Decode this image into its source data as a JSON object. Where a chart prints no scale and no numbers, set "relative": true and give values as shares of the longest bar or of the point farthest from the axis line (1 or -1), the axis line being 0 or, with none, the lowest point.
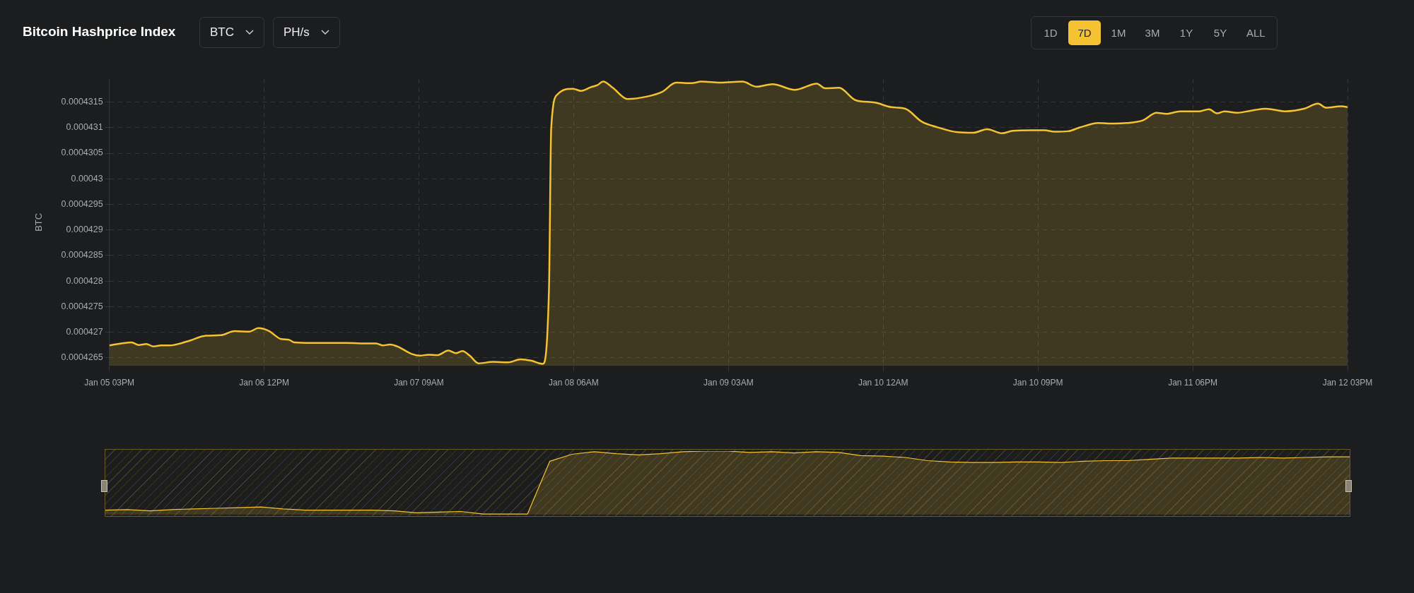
{
  "chart_data": [
    {
      "type": "area",
      "title": "Bitcoin Hashprice Index",
      "ylabel": "BTC",
      "annotations": [
        "BTC",
        "PH/s",
        "1D",
        "7D",
        "1M",
        "3M",
        "1Y",
        "5Y",
        "ALL"
      ],
      "xlim": [
        "--01-05T15:00",
        "--01-12T15:00"
      ],
      "xticks": [
        {
          "value": "--01-05T15:00",
          "label": "Jan 05 03PM"
        },
        {
          "value": "--01-06T12:00",
          "label": "Jan 06 12PM"
        },
        {
          "value": "--01-07T09:00",
          "label": "Jan 07 09AM"
        },
        {
          "value": "--01-08T06:00",
          "label": "Jan 08 06AM"
        },
        {
          "value": "--01-09T03:00",
          "label": "Jan 09 03AM"
        },
        {
          "value": "--01-10T00:00",
          "label": "Jan 10 12AM"
        },
        {
          "value": "--01-10T21:00",
          "label": "Jan 10 09PM"
        },
        {
          "value": "--01-11T18:00",
          "label": "Jan 11 06PM"
        },
        {
          "value": "--01-12T15:00",
          "label": "Jan 12 03PM"
        }
      ],
      "ylim": [
        0.00042635,
        0.00043195
      ],
      "yticks": [
        0.0004265,
        0.000427,
        0.0004275,
        0.000428,
        0.0004285,
        0.000429,
        0.0004295,
        0.00043,
        0.0004305,
        0.000431,
        0.0004315
      ],
      "grid": true,
      "legend": false,
      "marker": "none",
      "line_style": "solid",
      "series": [
        {
          "color": "#f5c232",
          "x": [
            "--01-05T15:00",
            "--01-05T18:00",
            "--01-05T19:00",
            "--01-05T20:00",
            "--01-05T21:00",
            "--01-05T22:00",
            "--01-05T23:12",
            "--01-06T01:36",
            "--01-06T04:06",
            "--01-06T06:06",
            "--01-06T08:00",
            "--01-06T10:00",
            "--01-06T11:12",
            "--01-06T12:42",
            "--01-06T14:12",
            "--01-06T15:24",
            "--01-06T16:06",
            "--01-06T18:18",
            "--01-06T20:18",
            "--01-06T23:12",
            "--01-07T01:12",
            "--01-07T03:12",
            "--01-07T04:06",
            "--01-07T05:06",
            "--01-07T06:06",
            "--01-07T08:06",
            "--01-07T09:06",
            "--01-07T10:18",
            "--01-07T11:30",
            "--01-07T13:00",
            "--01-07T14:00",
            "--01-07T14:54",
            "--01-07T15:54",
            "--01-07T17:06",
            "--01-07T19:06",
            "--01-07T21:06",
            "--01-07T22:48",
            "--01-08T00:18",
            "--01-08T01:48",
            "--01-08T02:39",
            "--01-08T02:57",
            "--01-08T03:48",
            "--01-08T05:54",
            "--01-08T07:00",
            "--01-08T08:18",
            "--01-08T09:12",
            "--01-08T10:00",
            "--01-08T11:18",
            "--01-08T13:18",
            "--01-08T16:00",
            "--01-08T18:00",
            "--01-08T19:54",
            "--01-08T22:00",
            "--01-08T23:18",
            "--01-09T01:54",
            "--01-09T04:54",
            "--01-09T06:48",
            "--01-09T09:00",
            "--01-09T12:00",
            "--01-09T15:00",
            "--01-09T16:06",
            "--01-09T18:00",
            "--01-09T20:12",
            "--01-09T22:54",
            "--01-10T01:06",
            "--01-10T03:00",
            "--01-10T05:12",
            "--01-10T07:18",
            "--01-10T10:06",
            "--01-10T12:12",
            "--01-10T14:06",
            "--01-10T16:06",
            "--01-10T17:36",
            "--01-10T20:12",
            "--01-10T21:54",
            "--01-10T23:12",
            "--01-11T01:06",
            "--01-11T02:36",
            "--01-11T05:12",
            "--01-11T07:18",
            "--01-11T09:00",
            "--01-11T11:12",
            "--01-11T13:06",
            "--01-11T14:24",
            "--01-11T16:18",
            "--01-11T18:54",
            "--01-11T20:12",
            "--01-11T21:18",
            "--01-11T22:18",
            "--01-12T00:00",
            "--01-12T01:48",
            "--01-12T03:54",
            "--01-12T06:30",
            "--01-12T09:06",
            "--01-12T11:00",
            "--01-12T12:06",
            "--01-12T14:12",
            "--01-12T15:00"
          ],
          "values": [
            0.00042674,
            0.0004268,
            0.00042675,
            0.00042677,
            0.00042672,
            0.00042674,
            0.00042674,
            0.00042682,
            0.00042693,
            0.00042694,
            0.00042702,
            0.00042701,
            0.00042708,
            0.00042702,
            0.00042687,
            0.00042685,
            0.0004268,
            0.00042679,
            0.00042679,
            0.00042679,
            0.00042678,
            0.00042678,
            0.00042674,
            0.00042676,
            0.00042672,
            0.00042657,
            0.00042654,
            0.00042656,
            0.00042655,
            0.00042664,
            0.00042659,
            0.00042663,
            0.00042654,
            0.00042639,
            0.00042642,
            0.00042641,
            0.00042647,
            0.00042644,
            0.00042638,
            0.00042785,
            0.00043099,
            0.00043165,
            0.00043176,
            0.00043172,
            0.00043179,
            0.00043183,
            0.0004319,
            0.00043178,
            0.00043156,
            0.00043161,
            0.0004317,
            0.00043188,
            0.00043187,
            0.0004319,
            0.00043188,
            0.0004319,
            0.0004318,
            0.00043185,
            0.00043174,
            0.00043186,
            0.00043177,
            0.00043178,
            0.00043154,
            0.00043149,
            0.0004314,
            0.00043137,
            0.00043112,
            0.00043101,
            0.00043091,
            0.0004309,
            0.00043097,
            0.00043089,
            0.00043094,
            0.00043095,
            0.00043095,
            0.00043092,
            0.00043093,
            0.000431,
            0.00043109,
            0.00043108,
            0.00043109,
            0.00043114,
            0.00043129,
            0.00043127,
            0.00043132,
            0.00043132,
            0.00043136,
            0.00043128,
            0.00043132,
            0.00043129,
            0.00043133,
            0.00043137,
            0.00043132,
            0.00043137,
            0.00043147,
            0.00043139,
            0.00043142,
            0.0004314
          ]
        }
      ]
    },
    {
      "type": "area",
      "relative": true,
      "categories": [
        null,
        null,
        null,
        null,
        null,
        null,
        null,
        null,
        null,
        null,
        null,
        null,
        null,
        null,
        null,
        null,
        null,
        null,
        null,
        null,
        null,
        null,
        null,
        null,
        null,
        null,
        null,
        null,
        null,
        null,
        null,
        null,
        null,
        null,
        null,
        null,
        null,
        null,
        null,
        null,
        null,
        null,
        null,
        null,
        null,
        null,
        null,
        null,
        null,
        null,
        null,
        null,
        null,
        null,
        null,
        null,
        null
      ],
      "series": [
        {
          "color": "#f5c232",
          "values": [
            0.07,
            0.08,
            0.06,
            0.08,
            0.09,
            0.1,
            0.11,
            0.12,
            0.09,
            0.07,
            0.07,
            0.07,
            0.07,
            0.06,
            0.03,
            0.04,
            0.05,
            0.01,
            0.01,
            0.01,
            0.84,
            0.95,
            0.99,
            0.96,
            0.94,
            0.96,
            0.99,
            1,
            1,
            0.98,
            0.99,
            0.97,
            0.99,
            0.98,
            0.93,
            0.92,
            0.9,
            0.85,
            0.83,
            0.82,
            0.82,
            0.83,
            0.83,
            0.82,
            0.84,
            0.85,
            0.85,
            0.87,
            0.89,
            0.89,
            0.89,
            0.89,
            0.9,
            0.89,
            0.9,
            0.91,
            0.91
          ]
        }
      ]
    }
  ]
}
